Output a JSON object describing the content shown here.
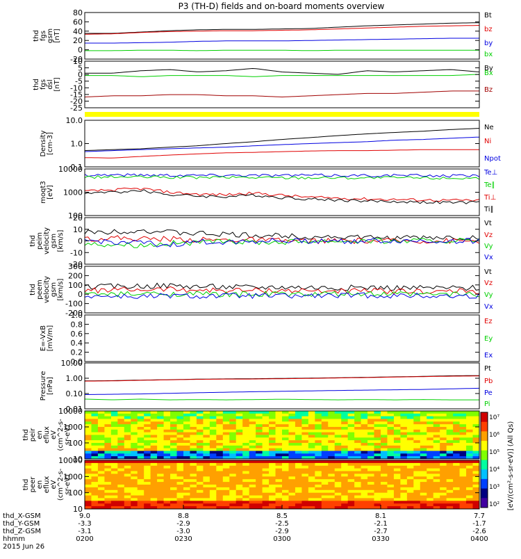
{
  "title": "P3 (TH-D) fields and on-board moments overview",
  "colors": {
    "black": "#000000",
    "red": "#e00000",
    "green": "#00d000",
    "blue": "#0000e0",
    "yellow": "#ffff00",
    "darkred": "#a00000"
  },
  "chart_data": [
    {
      "type": "line",
      "panel": "fgs",
      "ylabel_lines": [
        "thd",
        "fgs",
        "gsm",
        "[nT]"
      ],
      "yticks": [
        "80",
        "60",
        "40",
        "20",
        "0",
        "-20"
      ],
      "ylim": [
        -20,
        85
      ],
      "legend": [
        "Bt",
        "bz",
        "by",
        "bx"
      ],
      "series": [
        {
          "name": "Bt",
          "color": "black",
          "values": [
            38,
            38,
            41,
            44,
            46,
            47,
            47,
            48,
            49,
            52,
            55,
            57,
            59,
            61,
            62
          ]
        },
        {
          "name": "bz",
          "color": "red",
          "values": [
            36,
            37,
            40,
            42,
            43,
            44,
            44,
            45,
            46,
            48,
            50,
            52,
            54,
            55,
            56
          ]
        },
        {
          "name": "by",
          "color": "blue",
          "values": [
            16,
            16,
            17,
            18,
            20,
            21,
            21,
            21,
            22,
            23,
            24,
            25,
            26,
            27,
            27
          ]
        },
        {
          "name": "bx",
          "color": "green",
          "values": [
            -1,
            -1,
            0,
            0,
            -1,
            0,
            0,
            0,
            -1,
            0,
            0,
            0,
            0,
            0,
            0
          ]
        }
      ]
    },
    {
      "type": "line",
      "panel": "fgs-dsl",
      "ylabel_lines": [
        "thd",
        "fgs",
        "dsl",
        "[nT]"
      ],
      "yticks": [
        "10",
        "5",
        "0",
        "-5",
        "-10",
        "-15",
        "-20",
        "-25"
      ],
      "ylim": [
        -28,
        11
      ],
      "legend": [
        "By",
        "Bx",
        "Bz"
      ],
      "series": [
        {
          "name": "By",
          "color": "black",
          "values": [
            1,
            1,
            3,
            4,
            2,
            3,
            5,
            2,
            1,
            0,
            3,
            2,
            3,
            4,
            2
          ]
        },
        {
          "name": "Bx",
          "color": "green",
          "values": [
            -1,
            -1,
            -2,
            -1,
            -1,
            -1,
            -2,
            -1,
            -1,
            -1,
            -1,
            -1,
            -1,
            -1,
            0
          ]
        },
        {
          "name": "Bz",
          "color": "darkred",
          "values": [
            -19,
            -18,
            -18,
            -17,
            -17,
            -18,
            -18,
            -19,
            -18,
            -17,
            -16,
            -16,
            -15,
            -14,
            -14
          ]
        }
      ]
    },
    {
      "type": "line",
      "panel": "density",
      "scale": "log",
      "ylabel_lines": [
        "Density",
        "[cm-3]"
      ],
      "yticks": [
        "10.0",
        "1.0",
        "0.1"
      ],
      "ylim": [
        0.1,
        10
      ],
      "legend": [
        "Ne",
        "Ni",
        "Npot"
      ],
      "series": [
        {
          "name": "Ne",
          "color": "black",
          "values": [
            0.5,
            0.55,
            0.6,
            0.7,
            0.8,
            1.0,
            1.2,
            1.5,
            1.8,
            2.2,
            2.6,
            3.0,
            3.4,
            4.0,
            4.5
          ]
        },
        {
          "name": "Ni",
          "color": "red",
          "values": [
            0.25,
            0.24,
            0.28,
            0.32,
            0.36,
            0.4,
            0.42,
            0.45,
            0.48,
            0.5,
            0.5,
            0.52,
            0.55,
            0.55,
            0.55
          ]
        },
        {
          "name": "Npot",
          "color": "blue",
          "values": [
            0.45,
            0.5,
            0.55,
            0.6,
            0.65,
            0.7,
            0.8,
            0.9,
            1.0,
            1.1,
            1.2,
            1.4,
            1.5,
            1.7,
            1.9
          ]
        }
      ]
    },
    {
      "type": "line",
      "panel": "temperature",
      "scale": "log",
      "ylabel_lines": [
        "moqt3",
        "[eV]"
      ],
      "yticks": [
        "10000",
        "1000",
        "100"
      ],
      "ylim": [
        100,
        12000
      ],
      "legend": [
        "Te⊥",
        "Te∥",
        "Ti⊥",
        "Ti∥"
      ],
      "series": [
        {
          "name": "Te⊥",
          "color": "blue",
          "values": [
            6500,
            6600,
            6500,
            6400,
            6300,
            6400,
            6300,
            6200,
            6300,
            6200,
            6100,
            6200,
            6100,
            6000,
            6100
          ]
        },
        {
          "name": "Te∥",
          "color": "green",
          "values": [
            5200,
            5300,
            5200,
            5100,
            5000,
            5100,
            5000,
            4900,
            5000,
            4900,
            4800,
            4900,
            4800,
            4700,
            4800
          ]
        },
        {
          "name": "Ti⊥",
          "color": "red",
          "values": [
            1200,
            1400,
            1600,
            1100,
            900,
            850,
            1000,
            800,
            650,
            600,
            550,
            520,
            500,
            480,
            470
          ]
        },
        {
          "name": "Ti∥",
          "color": "black",
          "values": [
            1000,
            1100,
            1300,
            850,
            750,
            700,
            800,
            650,
            550,
            500,
            450,
            420,
            400,
            380,
            380
          ]
        }
      ]
    },
    {
      "type": "line",
      "panel": "peim-velocity",
      "ylabel_lines": [
        "thd",
        "peim",
        "velocity",
        "gsm",
        "[km/s]"
      ],
      "yticks": [
        "20",
        "10",
        "0",
        "-10",
        "-20"
      ],
      "ylim": [
        -22,
        22
      ],
      "legend": [
        "Vt",
        "Vz",
        "Vy",
        "Vx"
      ],
      "series": [
        {
          "name": "Vt",
          "color": "black",
          "values": [
            8,
            9,
            10,
            8,
            7,
            6,
            5,
            5,
            4,
            4,
            3,
            3,
            3,
            3,
            3
          ]
        },
        {
          "name": "Vz",
          "color": "red",
          "values": [
            2,
            3,
            2,
            2,
            1,
            1,
            1,
            0,
            0,
            0,
            0,
            0,
            0,
            0,
            0
          ]
        },
        {
          "name": "Vy",
          "color": "green",
          "values": [
            -3,
            -3,
            -4,
            -2,
            -2,
            -1,
            -1,
            -1,
            0,
            0,
            0,
            0,
            0,
            0,
            0
          ]
        },
        {
          "name": "Vx",
          "color": "blue",
          "values": [
            0,
            -1,
            -2,
            -4,
            -1,
            -1,
            0,
            0,
            0,
            0,
            0,
            0,
            0,
            0,
            0
          ]
        }
      ]
    },
    {
      "type": "line",
      "panel": "peem-velocity",
      "ylabel_lines": [
        "thd",
        "peem",
        "velocity",
        "gsm",
        "[km/s]"
      ],
      "yticks": [
        "300",
        "200",
        "100",
        "0",
        "-100",
        "-200"
      ],
      "ylim": [
        -210,
        310
      ],
      "legend": [
        "Vt",
        "Vz",
        "Vy",
        "Vx"
      ],
      "series": [
        {
          "name": "Vt",
          "color": "black",
          "values": [
            80,
            85,
            90,
            95,
            85,
            80,
            75,
            80,
            75,
            70,
            75,
            70,
            70,
            68,
            70
          ]
        },
        {
          "name": "Vz",
          "color": "red",
          "values": [
            40,
            45,
            50,
            55,
            45,
            40,
            40,
            40,
            35,
            35,
            35,
            30,
            30,
            30,
            30
          ]
        },
        {
          "name": "Vy",
          "color": "green",
          "values": [
            0,
            -5,
            0,
            5,
            0,
            -5,
            0,
            0,
            -5,
            0,
            0,
            0,
            -5,
            0,
            0
          ]
        },
        {
          "name": "Vx",
          "color": "blue",
          "values": [
            -20,
            -25,
            -30,
            -20,
            -25,
            -20,
            -20,
            -25,
            -20,
            -20,
            -15,
            -20,
            -20,
            -25,
            -20
          ]
        }
      ]
    },
    {
      "type": "line",
      "panel": "efield",
      "ylabel_lines": [
        "E=-VxB",
        "[mV/m]"
      ],
      "yticks": [
        "1.0",
        "0.8",
        "0.6",
        "0.4",
        "0.2",
        "0.0"
      ],
      "ylim": [
        0,
        1
      ],
      "legend": [
        "Ez",
        "Ey",
        "Ex"
      ],
      "series": []
    },
    {
      "type": "line",
      "panel": "pressure",
      "scale": "log",
      "ylabel_lines": [
        "Pressure",
        "[nPa]"
      ],
      "yticks": [
        "10.00",
        "1.00",
        "0.10",
        "0.01"
      ],
      "ylim": [
        0.01,
        12
      ],
      "legend": [
        "Pt",
        "Pb",
        "Pe",
        "Pi"
      ],
      "series": [
        {
          "name": "Pt",
          "color": "black",
          "values": [
            0.75,
            0.78,
            0.85,
            0.9,
            0.98,
            1.02,
            1.05,
            1.1,
            1.15,
            1.22,
            1.3,
            1.4,
            1.5,
            1.65,
            1.7
          ]
        },
        {
          "name": "Pb",
          "color": "red",
          "values": [
            0.72,
            0.75,
            0.82,
            0.88,
            0.95,
            0.98,
            1.0,
            1.05,
            1.1,
            1.18,
            1.25,
            1.35,
            1.45,
            1.55,
            1.6
          ]
        },
        {
          "name": "Pe",
          "color": "blue",
          "values": [
            0.09,
            0.095,
            0.1,
            0.11,
            0.12,
            0.13,
            0.14,
            0.15,
            0.16,
            0.17,
            0.18,
            0.19,
            0.2,
            0.22,
            0.24
          ]
        },
        {
          "name": "Pi",
          "color": "green",
          "values": [
            0.045,
            0.04,
            0.045,
            0.04,
            0.042,
            0.04,
            0.042,
            0.044,
            0.042,
            0.04,
            0.042,
            0.04,
            0.042,
            0.04,
            0.04
          ]
        }
      ]
    },
    {
      "type": "heatmap",
      "panel": "peir",
      "ylabel_lines": [
        "thd",
        "peir",
        "en",
        "eflux",
        "eV",
        "(cm^2-s-",
        "sr-eV)"
      ],
      "yticks": [
        "10000",
        "1000",
        "100",
        "10"
      ]
    },
    {
      "type": "heatmap",
      "panel": "peer",
      "ylabel_lines": [
        "thd",
        "peer",
        "en",
        "eflux",
        "eV",
        "(cm^2-s-",
        "sr-eV)"
      ],
      "yticks": [
        "10000",
        "1000",
        "100",
        "10"
      ]
    }
  ],
  "colorbar": {
    "ticks": [
      "10⁷",
      "10⁶",
      "10⁵",
      "10⁴",
      "10³",
      "10²"
    ],
    "label": "[eV/(cm²-s-sr-eV)] (All Qs)"
  },
  "xaxis": {
    "row_labels": [
      "thd_X-GSM",
      "thd_Y-GSM",
      "thd_Z-GSM",
      "hhmm",
      "2015 Jun 26"
    ],
    "columns": [
      {
        "x": "9.0",
        "y": "-3.3",
        "z": "-3.1",
        "t": "0200"
      },
      {
        "x": "8.8",
        "y": "-2.9",
        "z": "-3.0",
        "t": "0230"
      },
      {
        "x": "8.5",
        "y": "-2.5",
        "z": "-2.9",
        "t": "0300"
      },
      {
        "x": "8.1",
        "y": "-2.1",
        "z": "-2.7",
        "t": "0330"
      },
      {
        "x": "7.7",
        "y": "-1.7",
        "z": "-2.6",
        "t": "0400"
      }
    ]
  }
}
